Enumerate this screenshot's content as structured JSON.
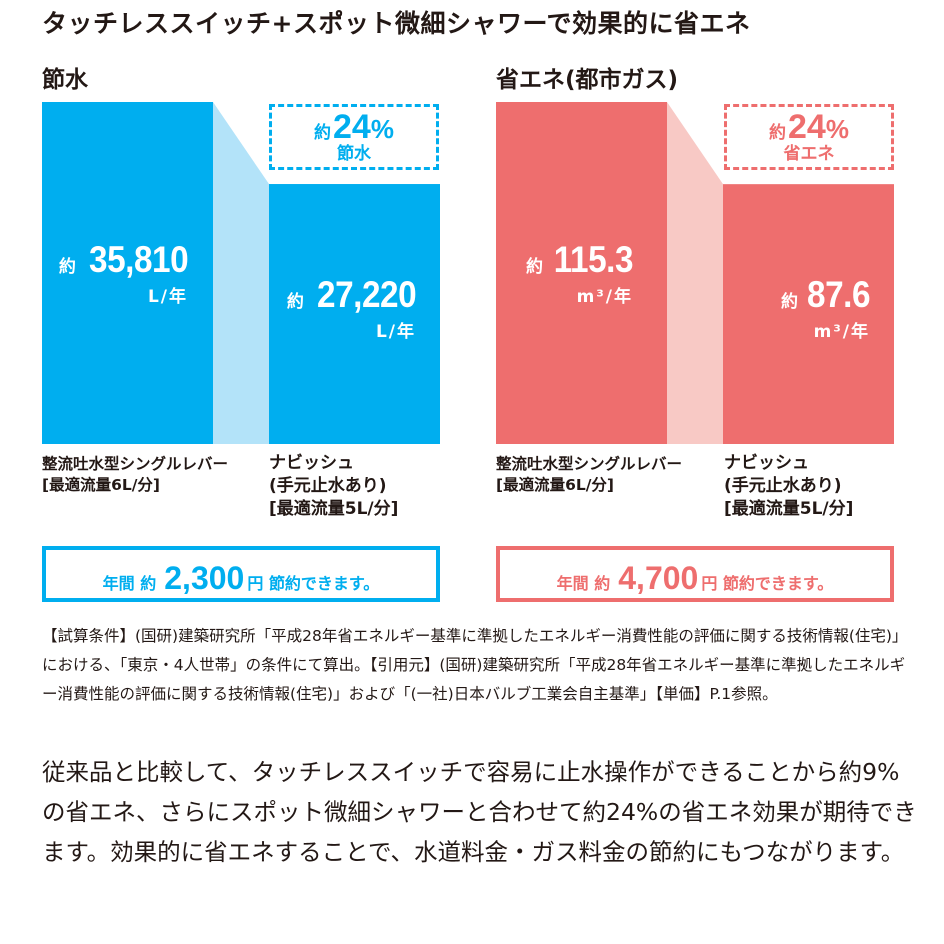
{
  "heading": "タッチレススイッチ+スポット微細シャワーで効果的に省エネ",
  "chart_data": [
    {
      "type": "bar",
      "title": "節水",
      "categories": [
        "整流吐水型シングルレバー [最適流量6L/分]",
        "ナビッシュ (手元止水あり) [最適流量5L/分]"
      ],
      "values": [
        35810,
        27220
      ],
      "unit": "L/年",
      "reduction_percent": 24,
      "reduction_label": "節水",
      "color": "#00aeef",
      "connector_color": "#b3e3f9",
      "ylim": [
        0,
        35810
      ]
    },
    {
      "type": "bar",
      "title": "省エネ(都市ガス)",
      "categories": [
        "整流吐水型シングルレバー [最適流量6L/分]",
        "ナビッシュ (手元止水あり) [最適流量5L/分]"
      ],
      "values": [
        115.3,
        87.6
      ],
      "unit": "m³/年",
      "reduction_percent": 24,
      "reduction_label": "省エネ",
      "color": "#ee6e6e",
      "connector_color": "#f8c9c5",
      "ylim": [
        0,
        115.3
      ]
    }
  ],
  "water": {
    "title": "節水",
    "bar1": {
      "pre": "約",
      "num": "35,810",
      "unit": "L/年"
    },
    "bar2": {
      "pre": "約",
      "num": "27,220",
      "unit": "L/年"
    },
    "cat1": {
      "line1": "整流吐水型シングルレバー",
      "line2": "[最適流量6L/分]"
    },
    "cat2": {
      "line1": "ナビッシュ",
      "line2": "(手元止水あり)",
      "line3": "[最適流量5L/分]"
    },
    "save": {
      "pre": "約",
      "pct": "24",
      "sym": "%",
      "label": "節水"
    },
    "result": {
      "pre": "年間 約",
      "num": "2,300",
      "post": "円 節約できます。"
    }
  },
  "gas": {
    "title": "省エネ(都市ガス)",
    "bar1": {
      "pre": "約",
      "num": "115.3",
      "unit": "m³/年"
    },
    "bar2": {
      "pre": "約",
      "num": "87.6",
      "unit": "m³/年"
    },
    "cat1": {
      "line1": "整流吐水型シングルレバー",
      "line2": "[最適流量6L/分]"
    },
    "cat2": {
      "line1": "ナビッシュ",
      "line2": "(手元止水あり)",
      "line3": "[最適流量5L/分]"
    },
    "save": {
      "pre": "約",
      "pct": "24",
      "sym": "%",
      "label": "省エネ"
    },
    "result": {
      "pre": "年間 約",
      "num": "4,700",
      "post": "円 節約できます。"
    }
  },
  "colors": {
    "blue": "#00aeef",
    "blue_light": "#b3e3f9",
    "red": "#ee6e6e",
    "red_light": "#f8c9c5",
    "text": "#231815"
  },
  "footnote": "【試算条件】(国研)建築研究所「平成28年省エネルギー基準に準拠したエネルギー消費性能の評価に関する技術情報(住宅)」における、「東京・4人世帯」の条件にて算出。【引用元】(国研)建築研究所「平成28年省エネルギー基準に準拠したエネルギー消費性能の評価に関する技術情報(住宅)」および「(一社)日本バルブ工業会自主基準」【単価】P.1参照。",
  "body_text": "従来品と比較して、タッチレススイッチで容易に止水操作ができることから約9%の省エネ、さらにスポット微細シャワーと合わせて約24%の省エネ効果が期待できます。効果的に省エネすることで、水道料金・ガス料金の節約にもつながります。"
}
